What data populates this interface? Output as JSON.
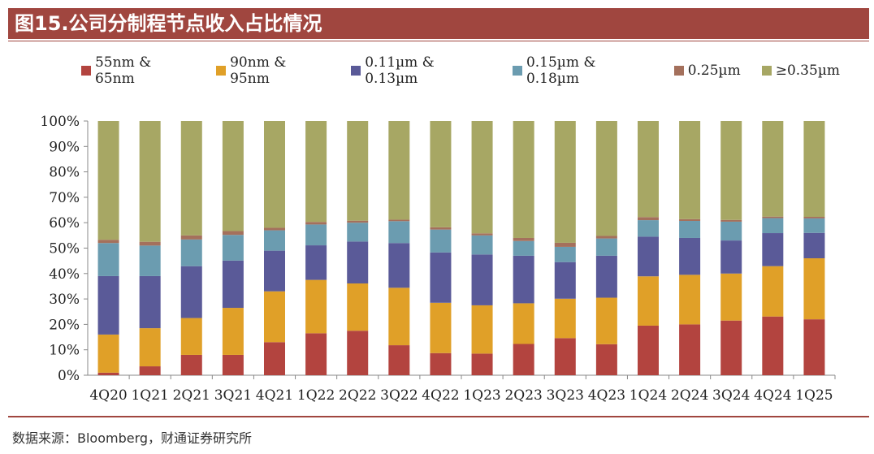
{
  "header": {
    "title": "图15.公司分制程节点收入占比情况"
  },
  "footer": {
    "source": "数据来源：Bloomberg，财通证券研究所"
  },
  "colors": {
    "accent": "#a0463f",
    "series": [
      "#b3443f",
      "#e0a028",
      "#5a5a98",
      "#6b9cb0",
      "#a4705c",
      "#a7a764"
    ]
  },
  "chart_data": {
    "type": "bar",
    "stacked": true,
    "categories": [
      "4Q20",
      "1Q21",
      "2Q21",
      "3Q21",
      "4Q21",
      "1Q22",
      "2Q22",
      "3Q22",
      "4Q22",
      "1Q23",
      "2Q23",
      "3Q23",
      "4Q23",
      "1Q24",
      "2Q24",
      "3Q24",
      "4Q24",
      "1Q25"
    ],
    "series": [
      {
        "name": "55nm & 65nm",
        "values": [
          1,
          3.5,
          8,
          8,
          13,
          16.5,
          17.5,
          11.8,
          8.7,
          8.5,
          12.3,
          14.6,
          12.2,
          19.5,
          20,
          21.5,
          23.1,
          22
        ]
      },
      {
        "name": "90nm & 95nm",
        "values": [
          15,
          15,
          14.5,
          18.5,
          20,
          21,
          18.6,
          22.6,
          19.8,
          19,
          16,
          15.5,
          18.3,
          19.4,
          19.5,
          18.5,
          19.8,
          24
        ]
      },
      {
        "name": "0.11µm & 0.13µm",
        "values": [
          23,
          20.5,
          20.4,
          18.6,
          16,
          13.6,
          16.5,
          17.6,
          19.8,
          20,
          18.7,
          14.4,
          16.5,
          15.6,
          14.5,
          13,
          13,
          10
        ]
      },
      {
        "name": "0.15µm & 0.18µm",
        "values": [
          13,
          12,
          10.5,
          10.1,
          8,
          8.2,
          7.4,
          8.6,
          9,
          7.5,
          5.8,
          6,
          6.8,
          6.5,
          6.7,
          7.4,
          5.9,
          5.7
        ]
      },
      {
        "name": "0.25µm",
        "values": [
          1.3,
          1.5,
          1.6,
          1.5,
          1,
          1,
          0.8,
          0.6,
          0.9,
          0.8,
          1.2,
          1.6,
          1,
          1.2,
          0.7,
          0.7,
          0.6,
          0.6
        ]
      },
      {
        "name": "≥0.35µm",
        "values": [
          46.7,
          47.5,
          45,
          43.3,
          42,
          39.7,
          39.2,
          38.8,
          41.8,
          44.2,
          46,
          47.9,
          45.2,
          37.8,
          38.6,
          38.9,
          37.6,
          37.7
        ]
      }
    ],
    "yticks": [
      "0%",
      "10%",
      "20%",
      "30%",
      "40%",
      "50%",
      "60%",
      "70%",
      "80%",
      "90%",
      "100%"
    ],
    "ylim": [
      0,
      100
    ],
    "legend_position": "top",
    "grid": false
  }
}
